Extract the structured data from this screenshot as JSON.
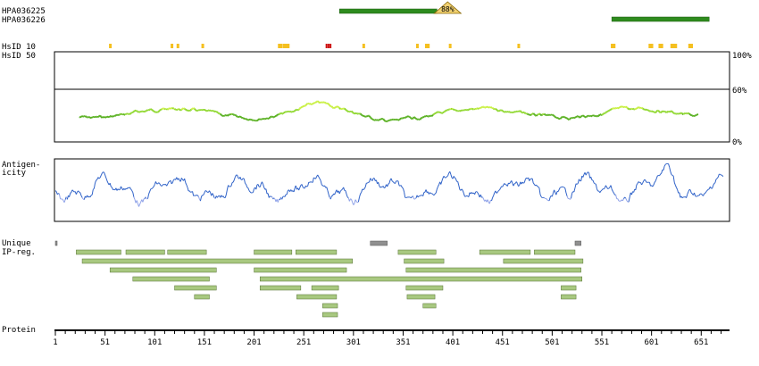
{
  "antibodies": [
    {
      "name": "HPA036225",
      "start": 287,
      "end": 385,
      "overlap_badge": "88%",
      "color": "#2e8b1e"
    },
    {
      "name": "HPA036226",
      "start": 561,
      "end": 659,
      "overlap_badge": "",
      "color": "#2e8b1e"
    }
  ],
  "hsid": {
    "label_10": "HsID 10",
    "label_50": "HsID 50",
    "marks_yellow": [
      55,
      117,
      123,
      148,
      225,
      227,
      230,
      232,
      234,
      310,
      364,
      373,
      375,
      397,
      466,
      560,
      562,
      598,
      600,
      608,
      610,
      620,
      622,
      624,
      638,
      640
    ],
    "marks_red": [
      273,
      275,
      277
    ],
    "scale_top": "100%",
    "scale_mid": "60%",
    "scale_bottom": "0%"
  },
  "antigenicity": {
    "label_line1": "Antigen-",
    "label_line2": "icity"
  },
  "unique_ip": {
    "label_line1": "Unique",
    "label_line2": "IP-reg.",
    "unique_segments": [
      {
        "start": 1,
        "end": 2
      },
      {
        "start": 318,
        "end": 335
      },
      {
        "start": 524,
        "end": 530
      }
    ],
    "segments": [
      {
        "start": 22,
        "end": 67,
        "row": 0
      },
      {
        "start": 72,
        "end": 111,
        "row": 0
      },
      {
        "start": 114,
        "end": 153,
        "row": 0
      },
      {
        "start": 201,
        "end": 239,
        "row": 0
      },
      {
        "start": 243,
        "end": 284,
        "row": 0
      },
      {
        "start": 346,
        "end": 384,
        "row": 0
      },
      {
        "start": 428,
        "end": 479,
        "row": 0
      },
      {
        "start": 483,
        "end": 524,
        "row": 0
      },
      {
        "start": 28,
        "end": 300,
        "row": 1
      },
      {
        "start": 352,
        "end": 392,
        "row": 1
      },
      {
        "start": 452,
        "end": 532,
        "row": 1
      },
      {
        "start": 56,
        "end": 163,
        "row": 2
      },
      {
        "start": 201,
        "end": 294,
        "row": 2
      },
      {
        "start": 354,
        "end": 530,
        "row": 2
      },
      {
        "start": 79,
        "end": 156,
        "row": 3
      },
      {
        "start": 207,
        "end": 531,
        "row": 3
      },
      {
        "start": 121,
        "end": 163,
        "row": 4
      },
      {
        "start": 207,
        "end": 248,
        "row": 4
      },
      {
        "start": 259,
        "end": 286,
        "row": 4
      },
      {
        "start": 354,
        "end": 391,
        "row": 4
      },
      {
        "start": 510,
        "end": 525,
        "row": 4
      },
      {
        "start": 141,
        "end": 156,
        "row": 5
      },
      {
        "start": 244,
        "end": 284,
        "row": 5
      },
      {
        "start": 355,
        "end": 383,
        "row": 5
      },
      {
        "start": 510,
        "end": 525,
        "row": 5
      },
      {
        "start": 270,
        "end": 285,
        "row": 6
      },
      {
        "start": 371,
        "end": 384,
        "row": 6
      },
      {
        "start": 270,
        "end": 285,
        "row": 7
      }
    ]
  },
  "protein": {
    "label": "Protein",
    "length": 675,
    "ticks": [
      1,
      51,
      101,
      151,
      201,
      251,
      301,
      351,
      401,
      451,
      501,
      551,
      601,
      651
    ]
  }
}
